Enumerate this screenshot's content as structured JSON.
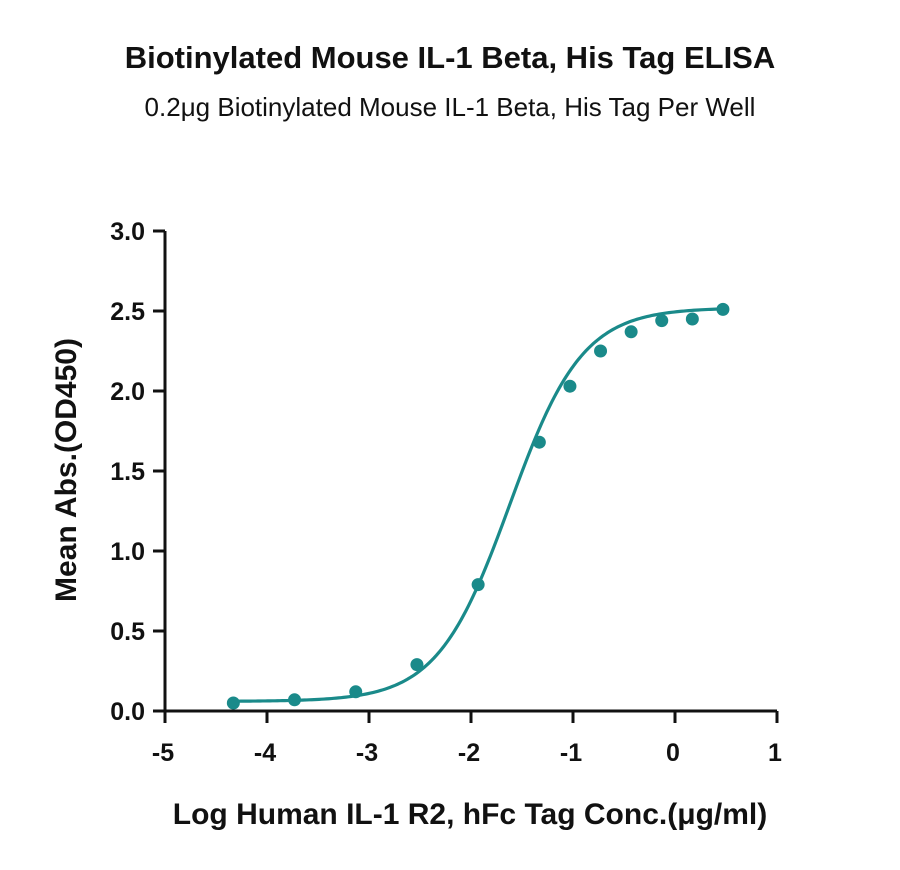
{
  "chart_data": {
    "type": "scatter",
    "title": "Biotinylated Mouse IL-1 Beta, His Tag ELISA",
    "subtitle": "0.2μg Biotinylated Mouse IL-1 Beta, His Tag Per Well",
    "xlabel": "Log Human IL-1 R2, hFc Tag Conc.(μg/ml)",
    "ylabel": "Mean Abs.(OD450)",
    "xlim": [
      -5,
      1
    ],
    "ylim": [
      0,
      3
    ],
    "xticks": [
      "-5",
      "-4",
      "-3",
      "-2",
      "-1",
      "0",
      "1"
    ],
    "yticks": [
      "0.0",
      "0.5",
      "1.0",
      "1.5",
      "2.0",
      "2.5",
      "3.0"
    ],
    "grid": false,
    "color": "#1a8a8a",
    "fit": "sigmoidal four-parameter curve",
    "series": [
      {
        "x": [
          -4.33,
          -3.73,
          -3.13,
          -2.53,
          -1.93,
          -1.33,
          -1.03,
          -0.73,
          -0.43,
          -0.13,
          0.17,
          0.47
        ],
        "y": [
          0.05,
          0.07,
          0.12,
          0.29,
          0.79,
          1.68,
          2.03,
          2.25,
          2.37,
          2.44,
          2.45,
          2.51
        ]
      }
    ]
  }
}
